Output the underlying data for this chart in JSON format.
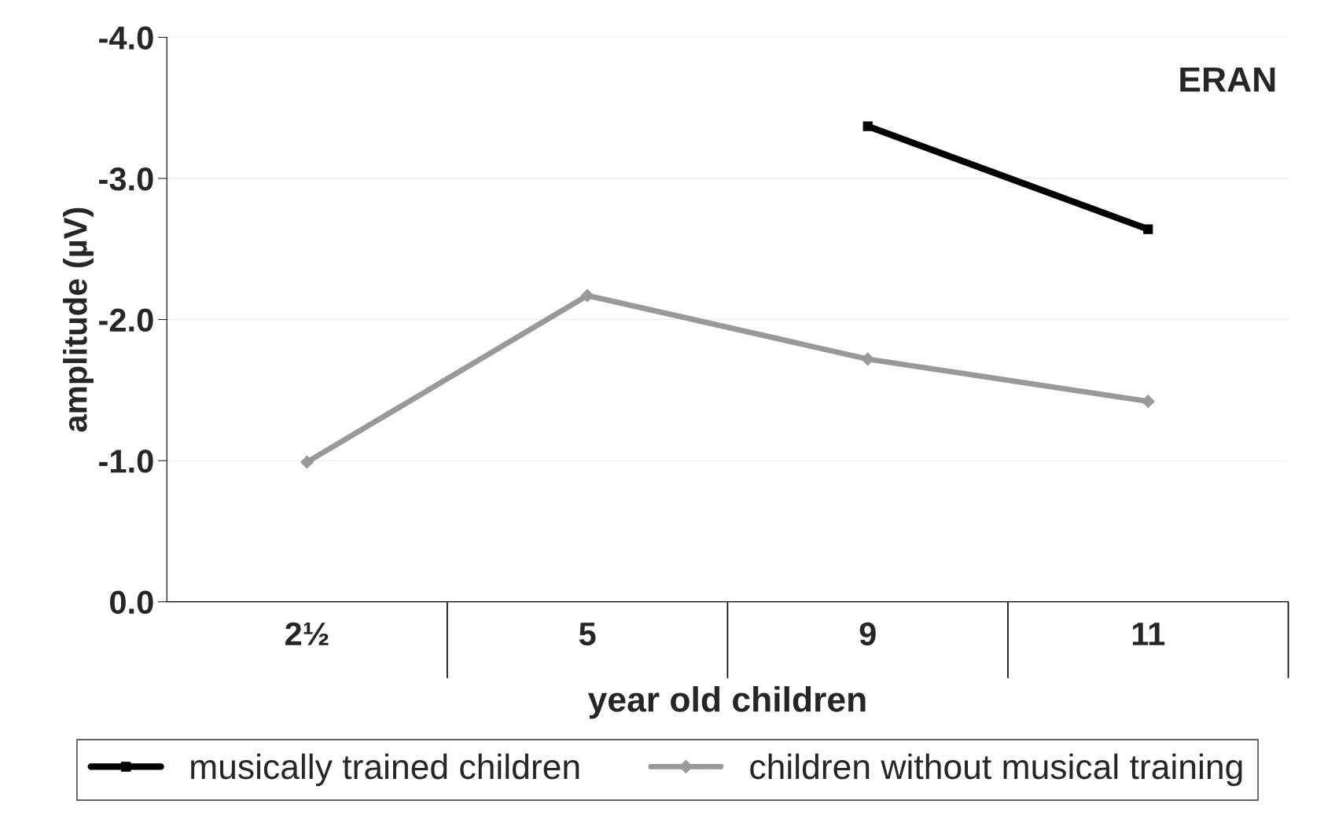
{
  "chart_data": {
    "type": "line",
    "xlabel": "year old children",
    "ylabel": "amplitude (µV)",
    "categories": [
      "2½",
      "5",
      "9",
      "11"
    ],
    "series": [
      {
        "name": "musically trained children",
        "color": "#000000",
        "marker": "square",
        "values": [
          null,
          null,
          -3.37,
          -2.64
        ]
      },
      {
        "name": "children without musical training",
        "color": "#999999",
        "marker": "diamond",
        "values": [
          -0.99,
          -2.17,
          -1.72,
          -1.42
        ]
      }
    ],
    "ylim": [
      0,
      -4
    ],
    "yticks": [
      {
        "value": -4,
        "label": "-4.0"
      },
      {
        "value": -3,
        "label": "-3.0"
      },
      {
        "value": -2,
        "label": "-2.0"
      },
      {
        "value": -1,
        "label": "-1.0"
      },
      {
        "value": 0,
        "label": "0.0"
      }
    ],
    "annotations": [
      "ERAN"
    ],
    "grid": "y",
    "legend": "bottom",
    "line_style": "solid"
  }
}
